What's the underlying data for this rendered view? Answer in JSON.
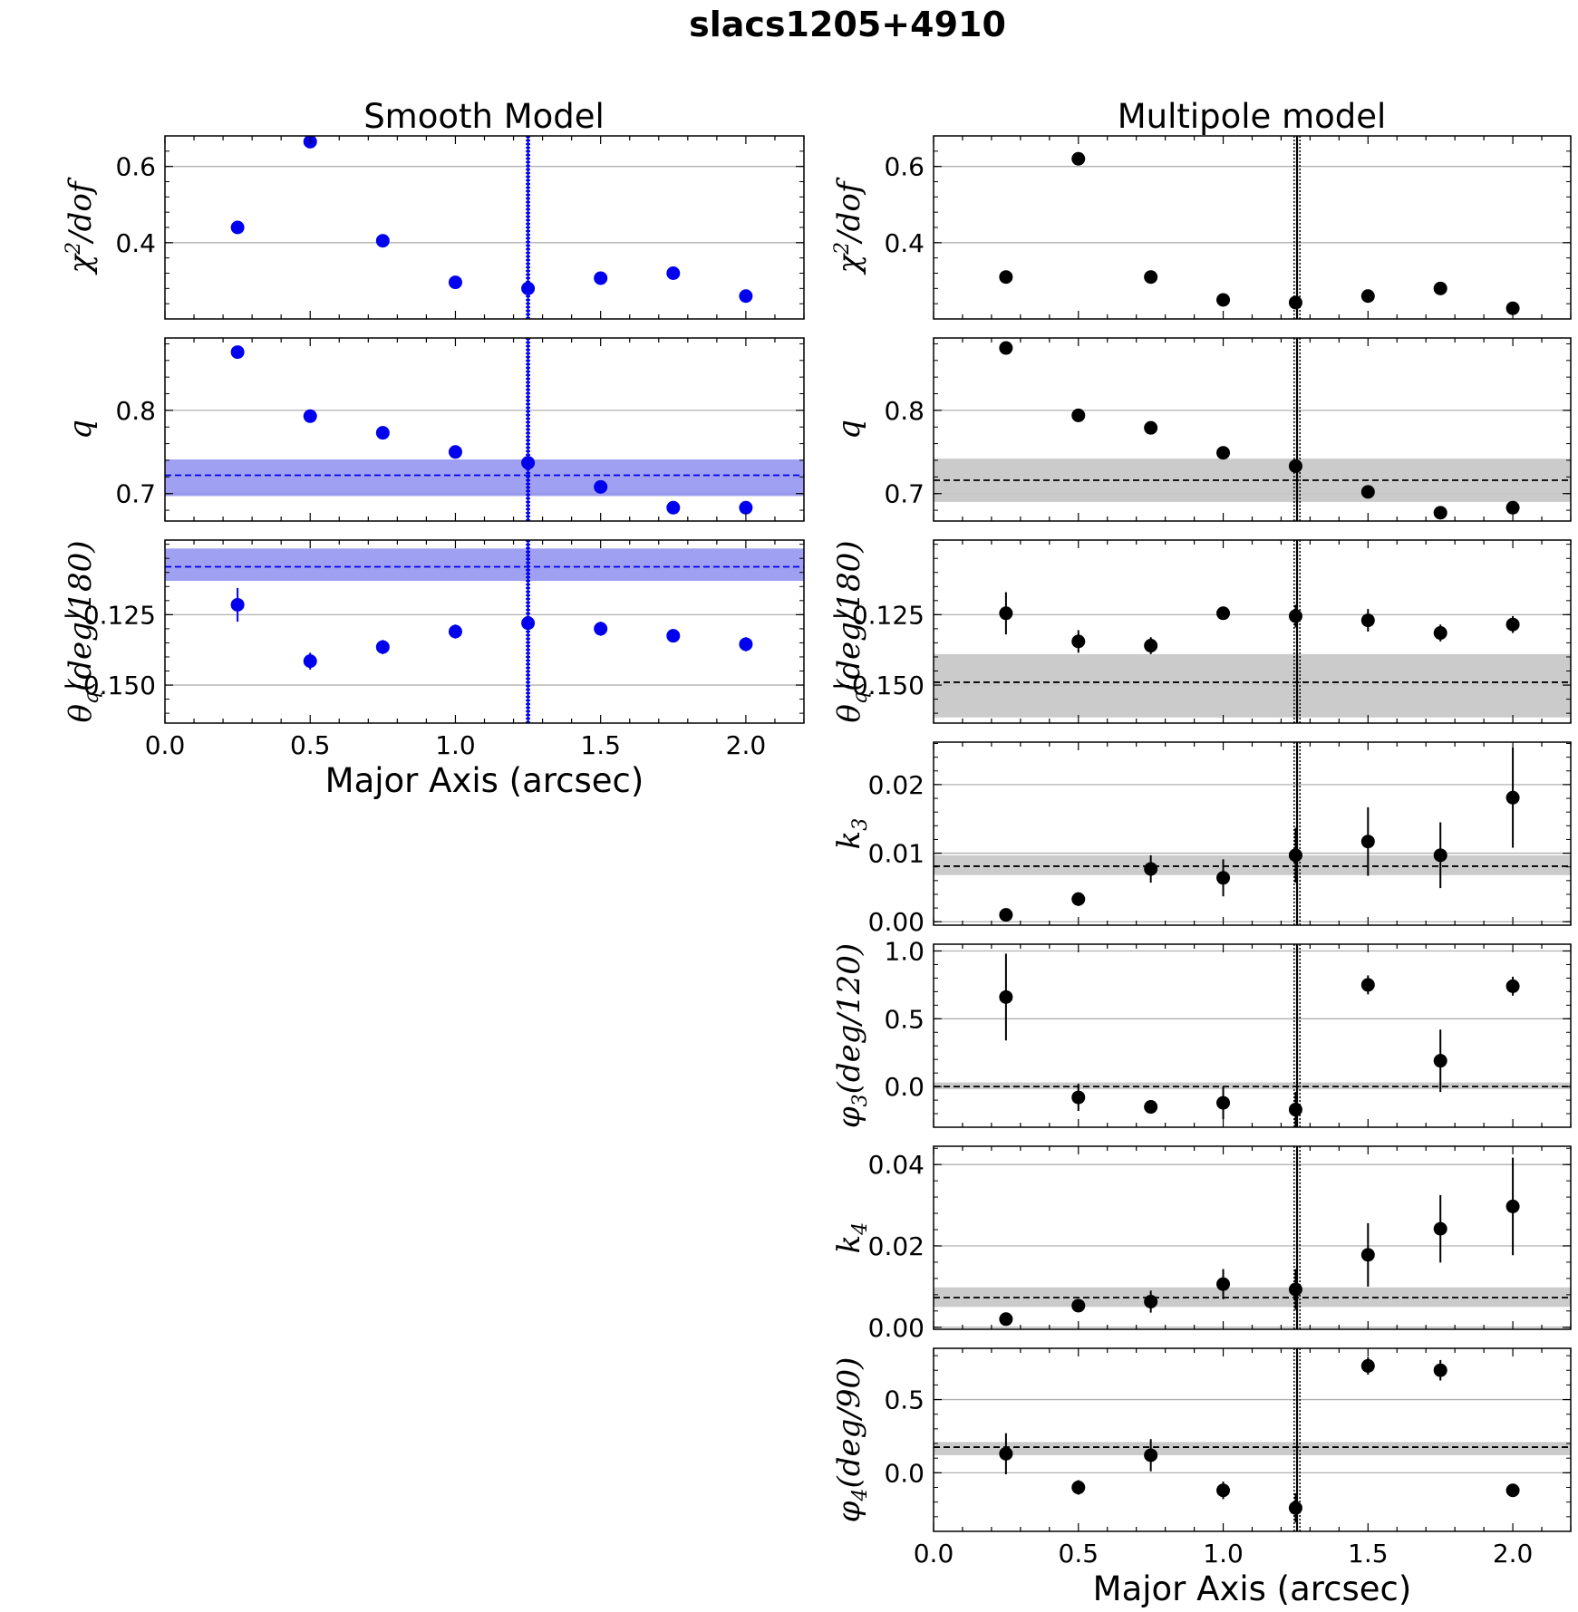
{
  "figure_title": "slacs1205+4910",
  "column_titles": {
    "smooth": "Smooth Model",
    "multipole": "Multipole model"
  },
  "x_axis": {
    "label": "Major Axis (arcsec)",
    "range": [
      0.0,
      2.2
    ],
    "ticks": [
      "0.0",
      "0.5",
      "1.0",
      "1.5",
      "2.0"
    ],
    "tick_values": [
      0.0,
      0.5,
      1.0,
      1.5,
      2.0
    ]
  },
  "colors": {
    "smooth": "#0000ee",
    "smooth_band": "#8f8ff0",
    "multipole": "#000000",
    "multipole_band": "#c8c8c8",
    "grid": "#b0b0b0"
  },
  "chart_data": [
    {
      "type": "scatter",
      "panel": "smooth-chi2",
      "column": "smooth",
      "title": "Smooth Model",
      "ylabel": "χ²/dof",
      "ylabel_parts": [
        "χ",
        "2",
        "/dof"
      ],
      "ylim": [
        0.2,
        0.68
      ],
      "yticks": [
        0.4,
        0.6
      ],
      "ytick_labels": [
        "0.4",
        "0.6"
      ],
      "x": [
        0.25,
        0.5,
        0.75,
        1.0,
        1.25,
        1.5,
        1.75,
        2.0
      ],
      "y": [
        0.44,
        0.665,
        0.405,
        0.296,
        0.28,
        0.307,
        0.32,
        0.26
      ],
      "yerr": [
        0,
        0,
        0,
        0,
        0,
        0,
        0,
        0
      ],
      "vlines": [
        1.245,
        1.255
      ],
      "vline_solid": 1.25
    },
    {
      "type": "scatter",
      "panel": "smooth-q",
      "column": "smooth",
      "ylabel": "q",
      "ylim": [
        0.667,
        0.887
      ],
      "yticks": [
        0.7,
        0.8
      ],
      "ytick_labels": [
        "0.7",
        "0.8"
      ],
      "x": [
        0.25,
        0.5,
        0.75,
        1.0,
        1.25,
        1.5,
        1.75,
        2.0
      ],
      "y": [
        0.87,
        0.793,
        0.773,
        0.75,
        0.737,
        0.708,
        0.683,
        0.683
      ],
      "yerr": [
        0,
        0,
        0,
        0,
        0,
        0,
        0,
        0
      ],
      "band": [
        0.697,
        0.741
      ],
      "hline": 0.722,
      "vlines": [
        1.245,
        1.255
      ],
      "vline_solid": 1.25
    },
    {
      "type": "scatter",
      "panel": "smooth-theta",
      "column": "smooth",
      "ylabel": "θq(deg/180)",
      "ylabel_parts": [
        "θ",
        "q",
        "(deg/180)"
      ],
      "ylim": [
        -0.1635,
        -0.0985
      ],
      "yticks": [
        -0.15,
        -0.125
      ],
      "ytick_labels": [
        "−0.150",
        "−0.125"
      ],
      "x": [
        0.25,
        0.5,
        0.75,
        1.0,
        1.25,
        1.5,
        1.75,
        2.0
      ],
      "y": [
        -0.1215,
        -0.1415,
        -0.1365,
        -0.131,
        -0.128,
        -0.13,
        -0.1325,
        -0.1355
      ],
      "yerr": [
        0.006,
        0.003,
        0.0025,
        0.0025,
        0.002,
        0.0025,
        0.0015,
        0.0025
      ],
      "band": [
        -0.113,
        -0.1015
      ],
      "hline": -0.108,
      "vlines": [
        1.245,
        1.255
      ],
      "vline_solid": 1.25,
      "xlabel": "Major Axis (arcsec)",
      "show_xticklabels": true
    },
    {
      "type": "scatter",
      "panel": "multi-chi2",
      "column": "multipole",
      "title": "Multipole model",
      "ylabel": "χ²/dof",
      "ylabel_parts": [
        "χ",
        "2",
        "/dof"
      ],
      "ylim": [
        0.2,
        0.68
      ],
      "yticks": [
        0.4,
        0.6
      ],
      "ytick_labels": [
        "0.4",
        "0.6"
      ],
      "x": [
        0.25,
        0.5,
        0.75,
        1.0,
        1.25,
        1.5,
        1.75,
        2.0
      ],
      "y": [
        0.31,
        0.62,
        0.31,
        0.25,
        0.243,
        0.26,
        0.28,
        0.228
      ],
      "yerr": [
        0,
        0,
        0,
        0.01,
        0.01,
        0.01,
        0.01,
        0.01
      ],
      "vlines": [
        1.245,
        1.265
      ],
      "vline_solid": 1.255
    },
    {
      "type": "scatter",
      "panel": "multi-q",
      "column": "multipole",
      "ylabel": "q",
      "ylim": [
        0.667,
        0.887
      ],
      "yticks": [
        0.7,
        0.8
      ],
      "ytick_labels": [
        "0.7",
        "0.8"
      ],
      "x": [
        0.25,
        0.5,
        0.75,
        1.0,
        1.25,
        1.5,
        1.75,
        2.0
      ],
      "y": [
        0.875,
        0.794,
        0.779,
        0.749,
        0.733,
        0.702,
        0.677,
        0.683
      ],
      "yerr": [
        0,
        0,
        0,
        0,
        0.004,
        0,
        0,
        0.004
      ],
      "band": [
        0.69,
        0.742
      ],
      "hline": 0.716,
      "vlines": [
        1.245,
        1.265
      ],
      "vline_solid": 1.255
    },
    {
      "type": "scatter",
      "panel": "multi-theta",
      "column": "multipole",
      "ylabel": "θq(deg/180)",
      "ylabel_parts": [
        "θ",
        "q",
        "(deg/180)"
      ],
      "ylim": [
        -0.1635,
        -0.0985
      ],
      "yticks": [
        -0.15,
        -0.125
      ],
      "ytick_labels": [
        "−0.150",
        "−0.125"
      ],
      "x": [
        0.25,
        0.5,
        0.75,
        1.0,
        1.25,
        1.5,
        1.75,
        2.0
      ],
      "y": [
        -0.1245,
        -0.1345,
        -0.136,
        -0.1245,
        -0.1255,
        -0.127,
        -0.1315,
        -0.1285
      ],
      "yerr": [
        0.0075,
        0.004,
        0.003,
        0.002,
        0.004,
        0.004,
        0.003,
        0.003
      ],
      "band": [
        -0.1615,
        -0.139
      ],
      "hline": -0.149,
      "vlines": [
        1.245,
        1.265
      ],
      "vline_solid": 1.255
    },
    {
      "type": "scatter",
      "panel": "multi-k3",
      "column": "multipole",
      "ylabel": "k3",
      "ylabel_parts": [
        "k",
        "3",
        ""
      ],
      "ylim": [
        -0.0005,
        0.0262
      ],
      "yticks": [
        0.0,
        0.01,
        0.02
      ],
      "ytick_labels": [
        "0.00",
        "0.01",
        "0.02"
      ],
      "x": [
        0.25,
        0.5,
        0.75,
        1.0,
        1.25,
        1.5,
        1.75,
        2.0
      ],
      "y": [
        0.001,
        0.0033,
        0.0077,
        0.0064,
        0.0097,
        0.0117,
        0.0097,
        0.0181
      ],
      "yerr": [
        0.0007,
        0.001,
        0.002,
        0.0027,
        0.004,
        0.005,
        0.0048,
        0.0073
      ],
      "band": [
        0.0068,
        0.0097
      ],
      "hline": 0.0081,
      "vlines": [
        1.245,
        1.265
      ],
      "vline_solid": 1.255
    },
    {
      "type": "scatter",
      "panel": "multi-phi3",
      "column": "multipole",
      "ylabel": "φ3(deg/120)",
      "ylabel_parts": [
        "φ",
        "3",
        "(deg/120)"
      ],
      "ylim": [
        -0.3,
        1.05
      ],
      "yticks": [
        0.0,
        0.5,
        1.0
      ],
      "ytick_labels": [
        "0.0",
        "0.5",
        "1.0"
      ],
      "x": [
        0.25,
        0.5,
        0.75,
        1.0,
        1.25,
        1.5,
        1.75,
        2.0
      ],
      "y": [
        0.66,
        -0.08,
        -0.15,
        -0.12,
        -0.17,
        0.75,
        0.19,
        0.74
      ],
      "yerr": [
        0.32,
        0.1,
        0.05,
        0.12,
        0.13,
        0.07,
        0.23,
        0.07
      ],
      "band": [
        -0.02,
        0.03
      ],
      "hline": 0.0,
      "vlines": [
        1.245,
        1.265
      ],
      "vline_solid": 1.255
    },
    {
      "type": "scatter",
      "panel": "multi-k4",
      "column": "multipole",
      "ylabel": "k4",
      "ylabel_parts": [
        "k",
        "4",
        ""
      ],
      "ylim": [
        -0.0005,
        0.0445
      ],
      "yticks": [
        0.0,
        0.02,
        0.04
      ],
      "ytick_labels": [
        "0.00",
        "0.02",
        "0.04"
      ],
      "x": [
        0.25,
        0.5,
        0.75,
        1.0,
        1.25,
        1.5,
        1.75,
        2.0
      ],
      "y": [
        0.002,
        0.0053,
        0.0063,
        0.0106,
        0.0093,
        0.0178,
        0.0242,
        0.0297
      ],
      "yerr": [
        0.0008,
        0.0008,
        0.0027,
        0.0037,
        0.005,
        0.0078,
        0.0083,
        0.012
      ],
      "band": [
        0.005,
        0.0098
      ],
      "hline": 0.0073,
      "vlines": [
        1.245,
        1.265
      ],
      "vline_solid": 1.255
    },
    {
      "type": "scatter",
      "panel": "multi-phi4",
      "column": "multipole",
      "ylabel": "φ4(deg/90)",
      "ylabel_parts": [
        "φ",
        "4",
        "(deg/90)"
      ],
      "ylim": [
        -0.4,
        0.85
      ],
      "yticks": [
        0.0,
        0.5
      ],
      "ytick_labels": [
        "0.0",
        "0.5"
      ],
      "x": [
        0.25,
        0.5,
        0.75,
        1.0,
        1.25,
        1.5,
        1.75,
        2.0
      ],
      "y": [
        0.13,
        -0.1,
        0.12,
        -0.12,
        -0.24,
        0.73,
        0.7,
        -0.12
      ],
      "yerr": [
        0.14,
        0.05,
        0.11,
        0.06,
        0.1,
        0.06,
        0.07,
        0.02
      ],
      "band": [
        0.12,
        0.21
      ],
      "hline": 0.175,
      "vlines": [
        1.245,
        1.265
      ],
      "vline_solid": 1.255,
      "xlabel": "Major Axis (arcsec)",
      "show_xticklabels": true
    }
  ]
}
